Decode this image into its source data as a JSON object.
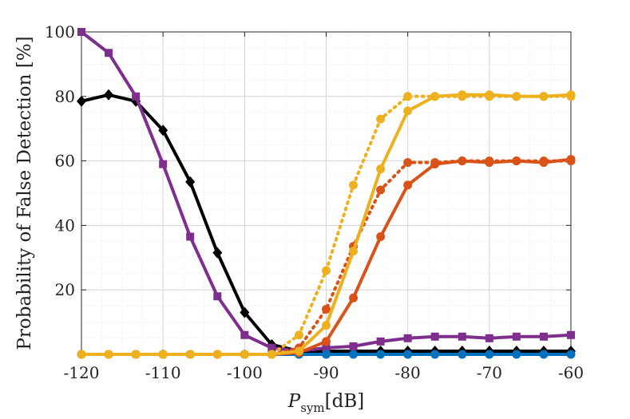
{
  "chart_data": {
    "type": "line",
    "title": "",
    "xlabel_main": "P",
    "xlabel_sub": "sym",
    "xlabel_unit": "[dB]",
    "ylabel": "Probability of False Detection [%]",
    "xlim": [
      -120,
      -60
    ],
    "ylim": [
      0,
      100
    ],
    "xticks": [
      -120,
      -110,
      -100,
      -90,
      -80,
      -70,
      -60
    ],
    "yticks": [
      20,
      40,
      60,
      80,
      100
    ],
    "grid": "minor-dotted",
    "series": [
      {
        "name": "black-diamond",
        "color": "#000000",
        "marker": "diamond",
        "style": "solid",
        "x": [
          -120,
          -116.67,
          -113.33,
          -110,
          -106.67,
          -103.33,
          -100,
          -96.67,
          -93.33,
          -90,
          -86.67,
          -83.33,
          -80,
          -76.67,
          -73.33,
          -70,
          -66.67,
          -63.33,
          -60
        ],
        "y": [
          78.5,
          80.5,
          78.5,
          69.5,
          53.5,
          31.5,
          13,
          3,
          1,
          1,
          1,
          1,
          1,
          1,
          1,
          1,
          1,
          1,
          1
        ]
      },
      {
        "name": "purple-square",
        "color": "#7E2F8E",
        "marker": "square",
        "style": "solid",
        "x": [
          -120,
          -116.67,
          -113.33,
          -110,
          -106.67,
          -103.33,
          -100,
          -96.67,
          -93.33,
          -90,
          -86.67,
          -83.33,
          -80,
          -76.67,
          -73.33,
          -70,
          -66.67,
          -63.33,
          -60
        ],
        "y": [
          100,
          93.5,
          80,
          59,
          36.5,
          18,
          6,
          2,
          1,
          2,
          2.5,
          4,
          5,
          5.5,
          5.5,
          5,
          5.5,
          5.5,
          6
        ]
      },
      {
        "name": "blue-circle",
        "color": "#0072BD",
        "marker": "circle",
        "style": "solid",
        "x": [
          -120,
          -116.67,
          -113.33,
          -110,
          -106.67,
          -103.33,
          -100,
          -96.67,
          -93.33,
          -90,
          -86.67,
          -83.33,
          -80,
          -76.67,
          -73.33,
          -70,
          -66.67,
          -63.33,
          -60
        ],
        "y": [
          0,
          0,
          0,
          0,
          0,
          0,
          0,
          0,
          0,
          0,
          0,
          0,
          0,
          0,
          0,
          0,
          0,
          0,
          0
        ]
      },
      {
        "name": "orange-dotted",
        "color": "#D95319",
        "marker": "circle",
        "style": "dotted",
        "x": [
          -120,
          -116.67,
          -113.33,
          -110,
          -106.67,
          -103.33,
          -100,
          -96.67,
          -93.33,
          -90,
          -86.67,
          -83.33,
          -80,
          -76.67,
          -73.33,
          -70,
          -66.67,
          -63.33,
          -60
        ],
        "y": [
          0,
          0,
          0,
          0,
          0,
          0,
          0,
          0,
          2,
          14,
          33.5,
          51,
          59.5,
          59.5,
          60,
          60,
          60,
          60,
          60
        ]
      },
      {
        "name": "orange-solid",
        "color": "#D95319",
        "marker": "circle",
        "style": "solid",
        "x": [
          -120,
          -116.67,
          -113.33,
          -110,
          -106.67,
          -103.33,
          -100,
          -96.67,
          -93.33,
          -90,
          -86.67,
          -83.33,
          -80,
          -76.67,
          -73.33,
          -70,
          -66.67,
          -63.33,
          -60
        ],
        "y": [
          0,
          0,
          0,
          0,
          0,
          0,
          0,
          0,
          0.5,
          4,
          17.5,
          36.5,
          52.5,
          59,
          60,
          59.5,
          60,
          59.5,
          60.5
        ]
      },
      {
        "name": "yellow-dotted",
        "color": "#EDB120",
        "marker": "circle",
        "style": "dotted",
        "x": [
          -120,
          -116.67,
          -113.33,
          -110,
          -106.67,
          -103.33,
          -100,
          -96.67,
          -93.33,
          -90,
          -86.67,
          -83.33,
          -80,
          -76.67,
          -73.33,
          -70,
          -66.67,
          -63.33,
          -60
        ],
        "y": [
          0,
          0,
          0,
          0,
          0,
          0,
          0,
          0,
          6,
          26,
          52.5,
          73,
          80,
          80,
          80,
          80,
          80,
          80,
          80
        ]
      },
      {
        "name": "yellow-solid",
        "color": "#EDB120",
        "marker": "circle",
        "style": "solid",
        "x": [
          -120,
          -116.67,
          -113.33,
          -110,
          -106.67,
          -103.33,
          -100,
          -96.67,
          -93.33,
          -90,
          -86.67,
          -83.33,
          -80,
          -76.67,
          -73.33,
          -70,
          -66.67,
          -63.33,
          -60
        ],
        "y": [
          0,
          0,
          0,
          0,
          0,
          0,
          0,
          0,
          1,
          9,
          32,
          57.5,
          75.5,
          80,
          80.5,
          80.5,
          80,
          80,
          80.5
        ]
      }
    ]
  }
}
